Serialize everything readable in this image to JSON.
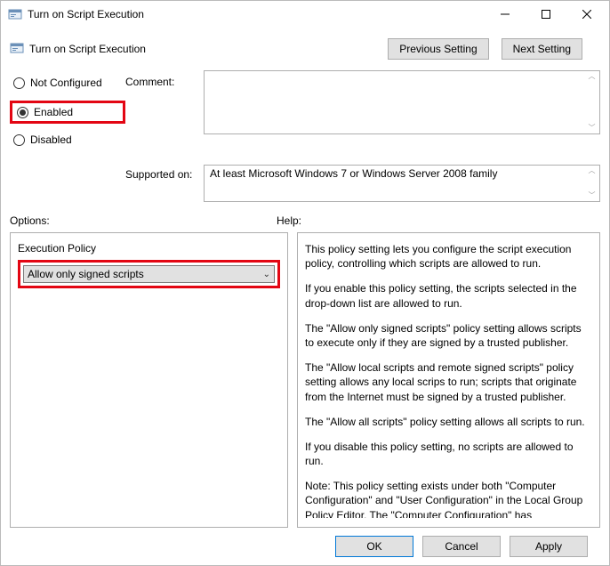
{
  "window": {
    "title": "Turn on Script Execution"
  },
  "header": {
    "policy_title": "Turn on Script Execution",
    "prev_label": "Previous Setting",
    "next_label": "Next Setting"
  },
  "state": {
    "not_configured": "Not Configured",
    "enabled": "Enabled",
    "disabled": "Disabled",
    "selected": "enabled"
  },
  "labels": {
    "comment": "Comment:",
    "supported_on": "Supported on:",
    "options": "Options:",
    "help": "Help:",
    "execution_policy": "Execution Policy"
  },
  "supported_text": "At least Microsoft Windows 7 or Windows Server 2008 family",
  "dropdown": {
    "selected": "Allow only signed scripts"
  },
  "help_paragraphs": [
    "This policy setting lets you configure the script execution policy, controlling which scripts are allowed to run.",
    "If you enable this policy setting, the scripts selected in the drop-down list are allowed to run.",
    "The \"Allow only signed scripts\" policy setting allows scripts to execute only if they are signed by a trusted publisher.",
    "The \"Allow local scripts and remote signed scripts\" policy setting allows any local scrips to run; scripts that originate from the Internet must be signed by a trusted publisher.",
    "The \"Allow all scripts\" policy setting allows all scripts to run.",
    "If you disable this policy setting, no scripts are allowed to run.",
    "Note: This policy setting exists under both \"Computer Configuration\" and \"User Configuration\" in the Local Group Policy Editor. The \"Computer Configuration\" has precedence over \"User Configuration.\""
  ],
  "footer": {
    "ok": "OK",
    "cancel": "Cancel",
    "apply": "Apply"
  },
  "colors": {
    "highlight": "#e30613",
    "button_border": "#adadad",
    "button_bg": "#e1e1e1",
    "primary_border": "#0078d7",
    "panel_border": "#aeaeae"
  }
}
